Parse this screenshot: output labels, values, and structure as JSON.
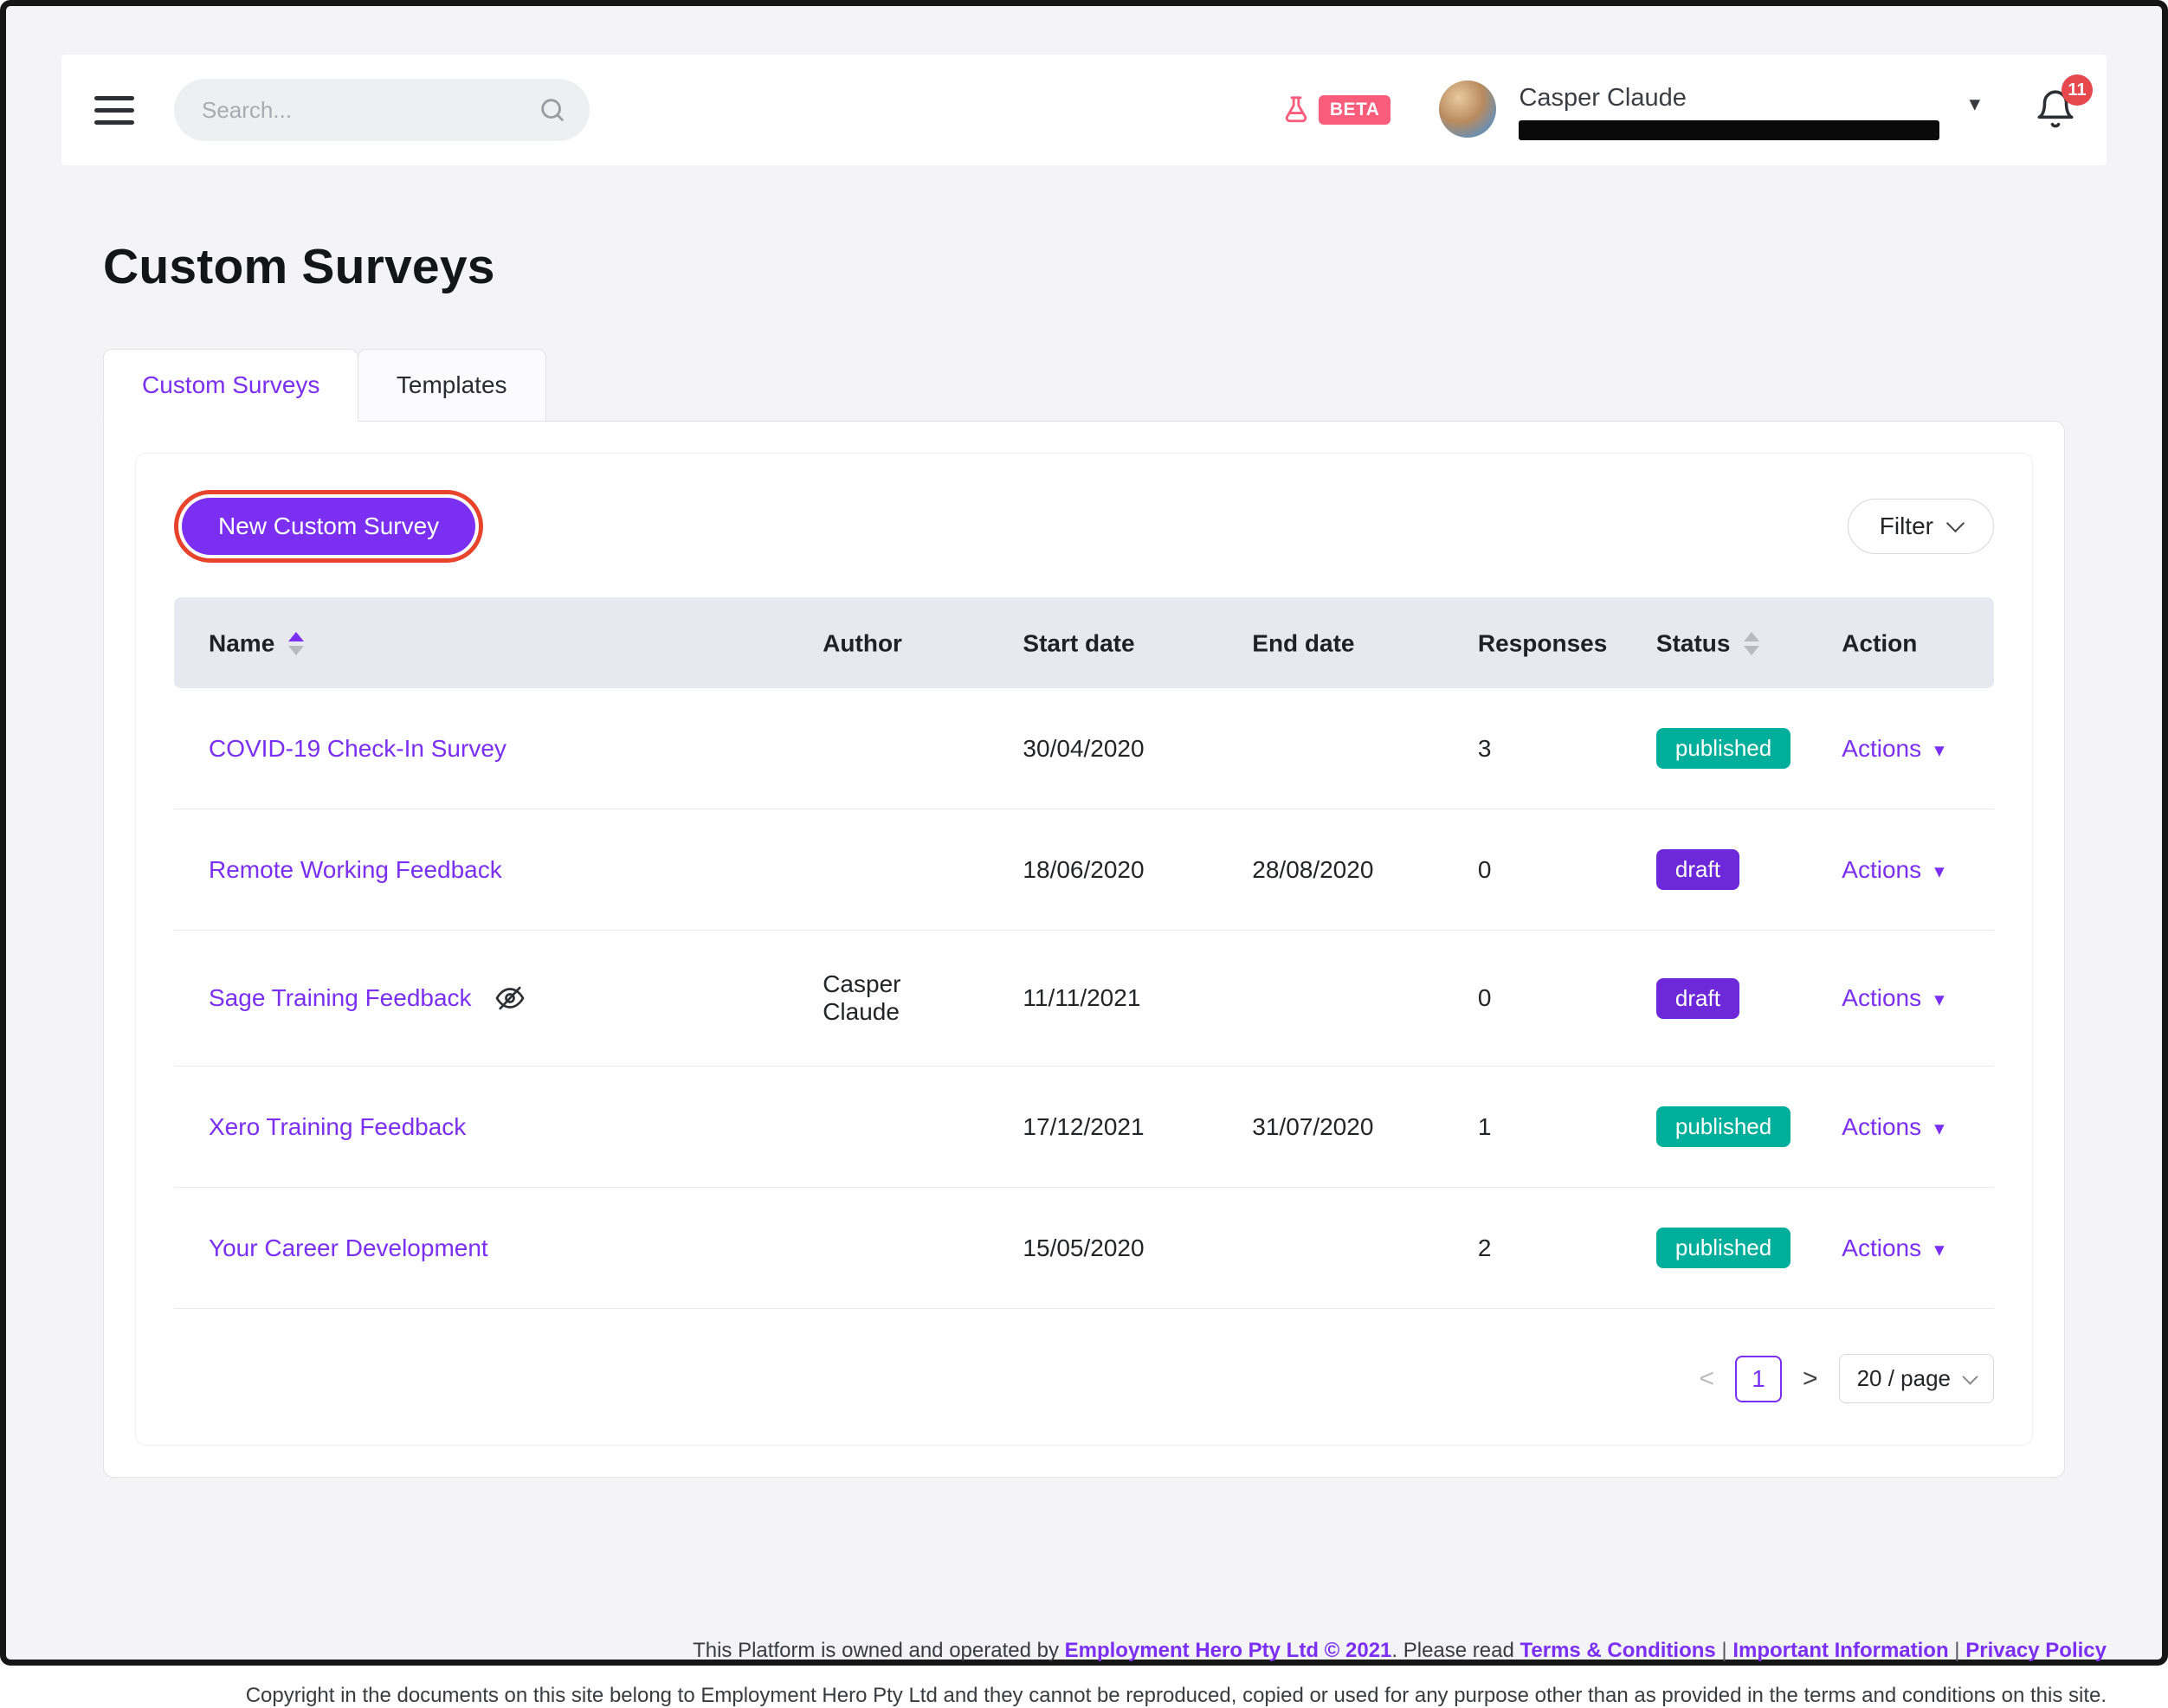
{
  "colors": {
    "accent_purple": "#7A2FF2",
    "annotation_ring": "#E8432C",
    "beta_pink": "#FA5C7C",
    "notification_red": "#E5484D",
    "table_header_bg": "#E7E8F0",
    "status": {
      "published": "#00AF9B",
      "draft": "#6C28D9"
    }
  },
  "header": {
    "search_placeholder": "Search...",
    "beta_label": "BETA",
    "user_name": "Casper Claude",
    "notification_count": "11"
  },
  "page": {
    "title": "Custom Surveys"
  },
  "tabs": [
    {
      "label": "Custom Surveys",
      "active": true
    },
    {
      "label": "Templates",
      "active": false
    }
  ],
  "toolbar": {
    "new_survey_label": "New Custom Survey",
    "filter_label": "Filter"
  },
  "table": {
    "columns": [
      {
        "label": "Name",
        "sortable": true,
        "sort": "asc"
      },
      {
        "label": "Author",
        "sortable": false,
        "sort": ""
      },
      {
        "label": "Start date",
        "sortable": false,
        "sort": ""
      },
      {
        "label": "End date",
        "sortable": false,
        "sort": ""
      },
      {
        "label": "Responses",
        "sortable": false,
        "sort": ""
      },
      {
        "label": "Status",
        "sortable": true,
        "sort": ""
      },
      {
        "label": "Action",
        "sortable": false,
        "sort": ""
      }
    ],
    "actions_label": "Actions",
    "rows": [
      {
        "name": "COVID-19 Check-In Survey",
        "hidden": false,
        "author": "",
        "start_date": "30/04/2020",
        "end_date": "",
        "responses": "3",
        "status": "published"
      },
      {
        "name": "Remote Working Feedback",
        "hidden": false,
        "author": "",
        "start_date": "18/06/2020",
        "end_date": "28/08/2020",
        "responses": "0",
        "status": "draft"
      },
      {
        "name": "Sage Training Feedback",
        "hidden": true,
        "author": "Casper Claude",
        "start_date": "11/11/2021",
        "end_date": "",
        "responses": "0",
        "status": "draft"
      },
      {
        "name": "Xero Training Feedback",
        "hidden": false,
        "author": "",
        "start_date": "17/12/2021",
        "end_date": "31/07/2020",
        "responses": "1",
        "status": "published"
      },
      {
        "name": "Your Career Development",
        "hidden": false,
        "author": "",
        "start_date": "15/05/2020",
        "end_date": "",
        "responses": "2",
        "status": "published"
      }
    ]
  },
  "pagination": {
    "prev": "<",
    "current_page": "1",
    "next": ">",
    "page_size": "20 / page"
  },
  "footer": {
    "line1_text1": "This Platform is owned and operated by ",
    "line1_link1": "Employment Hero Pty Ltd © 2021",
    "line1_text2": ". Please read ",
    "line1_link2": "Terms & Conditions",
    "line1_sep1": " | ",
    "line1_link3": "Important Information",
    "line1_sep2": " | ",
    "line1_link4": "Privacy Policy",
    "line2": "Copyright in the documents on this site belong to Employment Hero Pty Ltd and they cannot be reproduced, copied or used for any purpose other than as provided in the terms and conditions on this site."
  },
  "icons": {
    "caret_down": "▾"
  }
}
